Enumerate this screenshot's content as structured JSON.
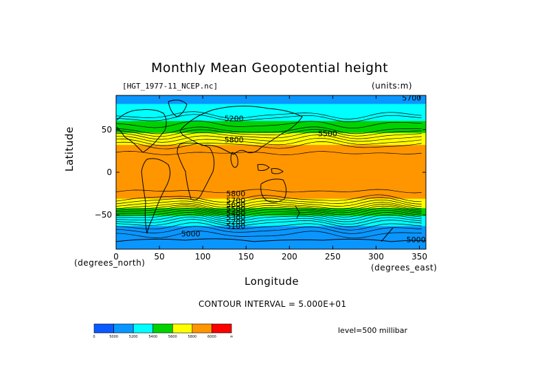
{
  "chart_data": {
    "type": "heatmap",
    "title": "Monthly Mean Geopotential height",
    "source_label": "[HGT_1977-11_NCEP.nc]",
    "units_label": "(units:m)",
    "xlabel": "Longitude",
    "ylabel": "Latitude",
    "x_units": "(degrees_east)",
    "y_units": "(degrees_north)",
    "xlim": [
      0,
      357.5
    ],
    "ylim": [
      -90,
      90
    ],
    "x_ticks": [
      0,
      50,
      100,
      150,
      200,
      250,
      300,
      350
    ],
    "y_ticks": [
      50,
      0,
      -50
    ],
    "contour_interval_label": "CONTOUR INTERVAL = 5.000E+01",
    "level_label": "level=500 millibar",
    "colorbar": {
      "bins": [
        {
          "color": "#0a5aff",
          "label": "0"
        },
        {
          "color": "#0a96ff",
          "label": "5000"
        },
        {
          "color": "#00ffff",
          "label": "5200"
        },
        {
          "color": "#00d200",
          "label": "5400"
        },
        {
          "color": "#ffff00",
          "label": "5600"
        },
        {
          "color": "#ff9600",
          "label": "5800"
        },
        {
          "color": "#ff0000",
          "label": "6000"
        }
      ],
      "end_label": "∞"
    },
    "zonal_profile_m": [
      {
        "lat": 90,
        "value": 5150
      },
      {
        "lat": 80,
        "value": 5200
      },
      {
        "lat": 70,
        "value": 5250
      },
      {
        "lat": 60,
        "value": 5400
      },
      {
        "lat": 52,
        "value": 5500
      },
      {
        "lat": 45,
        "value": 5620
      },
      {
        "lat": 38,
        "value": 5720
      },
      {
        "lat": 30,
        "value": 5820
      },
      {
        "lat": 20,
        "value": 5860
      },
      {
        "lat": 0,
        "value": 5870
      },
      {
        "lat": -20,
        "value": 5860
      },
      {
        "lat": -30,
        "value": 5810
      },
      {
        "lat": -35,
        "value": 5730
      },
      {
        "lat": -40,
        "value": 5640
      },
      {
        "lat": -45,
        "value": 5520
      },
      {
        "lat": -52,
        "value": 5380
      },
      {
        "lat": -60,
        "value": 5240
      },
      {
        "lat": -70,
        "value": 5120
      },
      {
        "lat": -80,
        "value": 5050
      },
      {
        "lat": -90,
        "value": 5050
      }
    ],
    "contour_labels": [
      {
        "text": "5700",
        "lon": 330,
        "lat": 84
      },
      {
        "text": "5200",
        "lon": 125,
        "lat": 60
      },
      {
        "text": "5500",
        "lon": 233,
        "lat": 42
      },
      {
        "text": "5800",
        "lon": 125,
        "lat": 35
      },
      {
        "text": "5800",
        "lon": 127,
        "lat": -28
      },
      {
        "text": "5700",
        "lon": 127,
        "lat": -36
      },
      {
        "text": "5600",
        "lon": 127,
        "lat": -41
      },
      {
        "text": "5500",
        "lon": 127,
        "lat": -46
      },
      {
        "text": "5400",
        "lon": 127,
        "lat": -51
      },
      {
        "text": "5300",
        "lon": 127,
        "lat": -56
      },
      {
        "text": "5200",
        "lon": 127,
        "lat": -61
      },
      {
        "text": "5100",
        "lon": 127,
        "lat": -66
      },
      {
        "text": "5000",
        "lon": 75,
        "lat": -75
      },
      {
        "text": "5000",
        "lon": 335,
        "lat": -82
      }
    ]
  }
}
